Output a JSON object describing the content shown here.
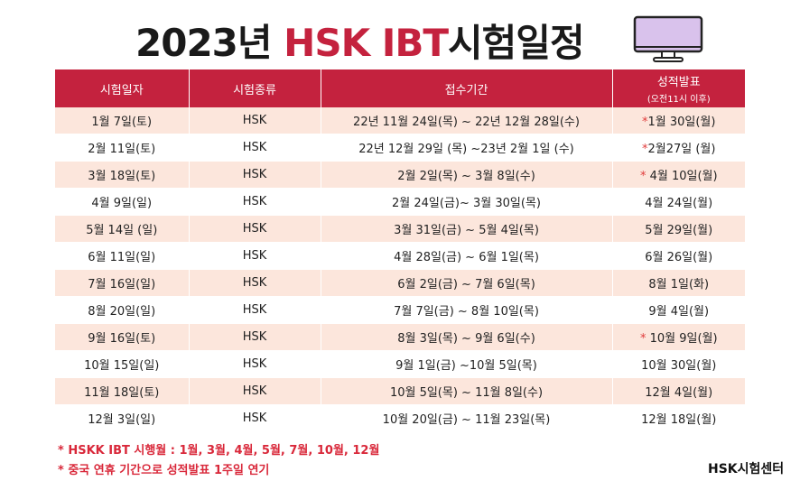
{
  "title": {
    "prefix": "2023년 ",
    "accent": "HSK IBT",
    "suffix": "시험일정"
  },
  "table": {
    "headers": {
      "date": "시험일자",
      "type": "시험종류",
      "period": "접수기간",
      "result": "성적발표",
      "result_note": "(오전11시 이후)"
    },
    "rows": [
      {
        "date": "1월 7일(토)",
        "type": "HSK",
        "period": "22년 11월 24일(목) ~ 22년 12월 28일(수)",
        "star": "*",
        "result": "1월 30일(월)"
      },
      {
        "date": "2월 11일(토)",
        "type": "HSK",
        "period": "22년 12월 29일 (목) ~23년 2월 1일 (수)",
        "star": "*",
        "result": "2월27일 (월)"
      },
      {
        "date": "3월 18일(토)",
        "type": "HSK",
        "period": "2월 2일(목) ~ 3월 8일(수)",
        "star": "* ",
        "result": "4월 10일(월)"
      },
      {
        "date": "4월 9일(일)",
        "type": "HSK",
        "period": "2월 24일(금)~ 3월 30일(목)",
        "star": "",
        "result": "4월 24일(월)"
      },
      {
        "date": "5월 14일 (일)",
        "type": "HSK",
        "period": "3월 31일(금) ~ 5월 4일(목)",
        "star": "",
        "result": "5월 29일(월)"
      },
      {
        "date": "6월 11일(일)",
        "type": "HSK",
        "period": "4월 28일(금) ~ 6월 1일(목)",
        "star": "",
        "result": "6월 26일(월)"
      },
      {
        "date": "7월 16일(일)",
        "type": "HSK",
        "period": "6월 2일(금) ~ 7월 6일(목)",
        "star": "",
        "result": "8월 1일(화)"
      },
      {
        "date": "8월 20일(일)",
        "type": "HSK",
        "period": "7월 7일(금) ~ 8월 10일(목)",
        "star": "",
        "result": "9월 4일(월)"
      },
      {
        "date": "9월 16일(토)",
        "type": "HSK",
        "period": "8월 3일(목) ~ 9월 6일(수)",
        "star": "* ",
        "result": "10월 9일(월)"
      },
      {
        "date": "10월 15일(일)",
        "type": "HSK",
        "period": "9월 1일(금) ~10월 5일(목)",
        "star": "",
        "result": "10월 30일(월)"
      },
      {
        "date": "11월 18일(토)",
        "type": "HSK",
        "period": "10월 5일(목) ~ 11월 8일(수)",
        "star": "",
        "result": "12월 4일(월)"
      },
      {
        "date": "12월 3일(일)",
        "type": "HSK",
        "period": "10월 20일(금) ~ 11월 23일(목)",
        "star": "",
        "result": "12월 18일(월)"
      }
    ]
  },
  "footnotes": [
    "* HSKK IBT 시행월 : 1월, 3월, 4월, 5월, 7월, 10월, 12월",
    "* 중국 연휴 기간으로 성적발표 1주일 연기"
  ],
  "brand": "HSK시험센터",
  "colors": {
    "accent": "#c4223e",
    "row_tint": "#fce6dc",
    "note_red": "#d9283a",
    "monitor_screen": "#d9c2ec"
  },
  "icons": [
    "monitor-icon"
  ]
}
